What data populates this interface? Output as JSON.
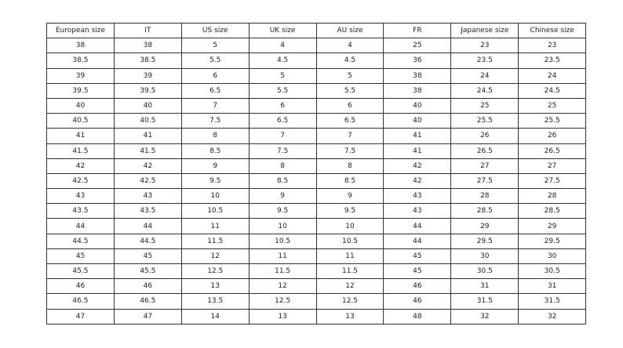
{
  "headers": [
    "European size",
    "IT",
    "US size",
    "UK size",
    "AU size",
    "FR",
    "Japanese size",
    "Chinese size"
  ],
  "rows": [
    [
      "38",
      "38",
      "5",
      "4",
      "4",
      "25",
      "23",
      "23"
    ],
    [
      "38.5",
      "38.5",
      "5.5",
      "4.5",
      "4.5",
      "36",
      "23.5",
      "23.5"
    ],
    [
      "39",
      "39",
      "6",
      "5",
      "5",
      "38",
      "24",
      "24"
    ],
    [
      "39.5",
      "39.5",
      "6.5",
      "5.5",
      "5.5",
      "38",
      "24.5",
      "24.5"
    ],
    [
      "40",
      "40",
      "7",
      "6",
      "6",
      "40",
      "25",
      "25"
    ],
    [
      "40.5",
      "40.5",
      "7.5",
      "6.5",
      "6.5",
      "40",
      "25.5",
      "25.5"
    ],
    [
      "41",
      "41",
      "8",
      "7",
      "7",
      "41",
      "26",
      "26"
    ],
    [
      "41.5",
      "41.5",
      "8.5",
      "7.5",
      "7.5",
      "41",
      "26.5",
      "26.5"
    ],
    [
      "42",
      "42",
      "9",
      "8",
      "8",
      "42",
      "27",
      "27"
    ],
    [
      "42.5",
      "42.5",
      "9.5",
      "8.5",
      "8.5",
      "42",
      "27.5",
      "27.5"
    ],
    [
      "43",
      "43",
      "10",
      "9",
      "9",
      "43",
      "28",
      "28"
    ],
    [
      "43.5",
      "43.5",
      "10.5",
      "9.5",
      "9.5",
      "43",
      "28.5",
      "28.5"
    ],
    [
      "44",
      "44",
      "11",
      "10",
      "10",
      "44",
      "29",
      "29"
    ],
    [
      "44.5",
      "44.5",
      "11.5",
      "10.5",
      "10.5",
      "44",
      "29.5",
      "29.5"
    ],
    [
      "45",
      "45",
      "12",
      "11",
      "11",
      "45",
      "30",
      "30"
    ],
    [
      "45.5",
      "45.5",
      "12.5",
      "11.5",
      "11.5",
      "45",
      "30.5",
      "30.5"
    ],
    [
      "46",
      "46",
      "13",
      "12",
      "12",
      "46",
      "31",
      "31"
    ],
    [
      "46.5",
      "46.5",
      "13.5",
      "12.5",
      "12.5",
      "46",
      "31.5",
      "31.5"
    ],
    [
      "47",
      "47",
      "14",
      "13",
      "13",
      "48",
      "32",
      "32"
    ]
  ]
}
